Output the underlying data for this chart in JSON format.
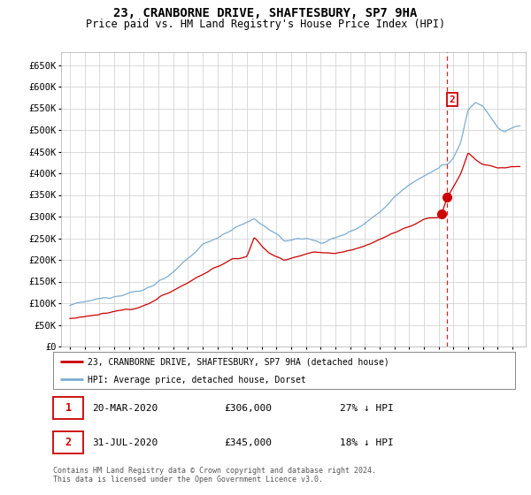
{
  "title": "23, CRANBORNE DRIVE, SHAFTESBURY, SP7 9HA",
  "subtitle": "Price paid vs. HM Land Registry's House Price Index (HPI)",
  "title_fontsize": 10,
  "subtitle_fontsize": 8.5,
  "background_color": "#ffffff",
  "grid_color": "#cccccc",
  "hpi_color": "#7aadd4",
  "price_color": "#cc0000",
  "ylim": [
    0,
    680000
  ],
  "yticks": [
    0,
    50000,
    100000,
    150000,
    200000,
    250000,
    300000,
    350000,
    400000,
    450000,
    500000,
    550000,
    600000,
    650000
  ],
  "legend_label_price": "23, CRANBORNE DRIVE, SHAFTESBURY, SP7 9HA (detached house)",
  "legend_label_hpi": "HPI: Average price, detached house, Dorset",
  "sale1_date": "20-MAR-2020",
  "sale1_price": 306000,
  "sale1_pct": "27% ↓ HPI",
  "sale2_date": "31-JUL-2020",
  "sale2_price": 345000,
  "sale2_pct": "18% ↓ HPI",
  "footnote": "Contains HM Land Registry data © Crown copyright and database right 2024.\nThis data is licensed under the Open Government Licence v3.0.",
  "vline_x_year": 2020.58,
  "marker1_year": 2020.21,
  "marker2_year": 2020.58,
  "marker1_hpi": 419178,
  "marker2_hpi": 420732,
  "xlim_left": 1994.4,
  "xlim_right": 2025.9
}
